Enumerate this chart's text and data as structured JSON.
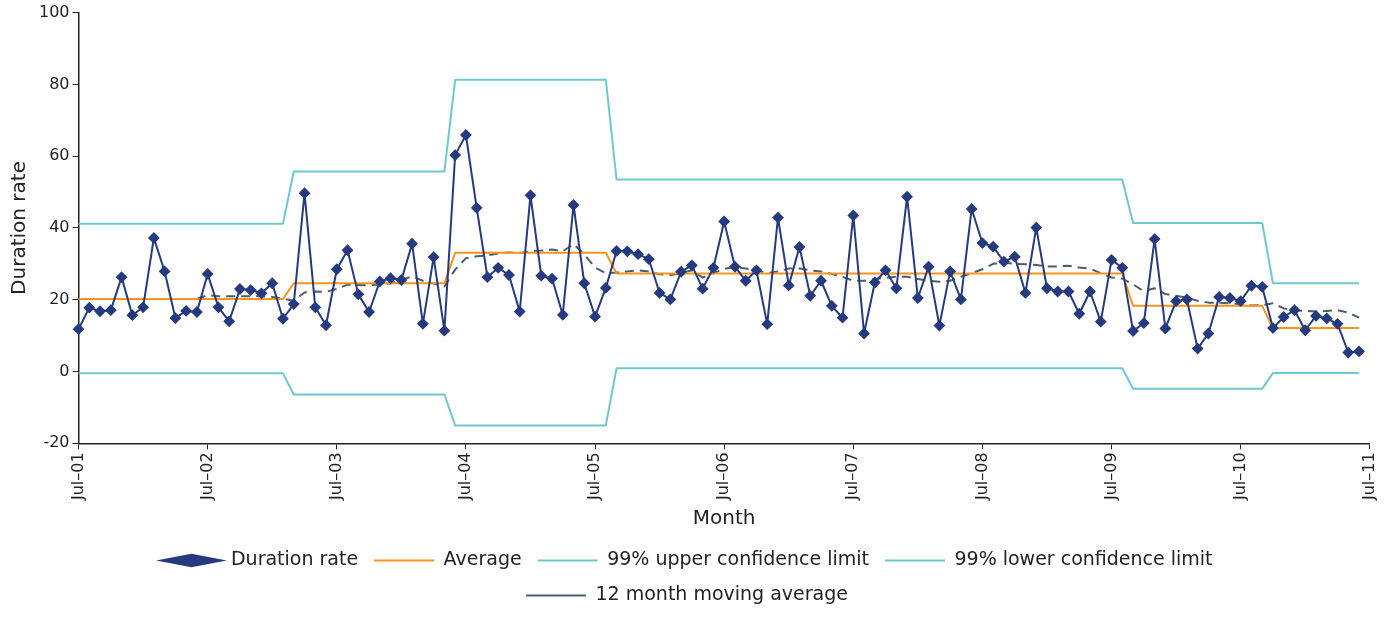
{
  "chart_data": {
    "type": "line",
    "xlabel": "Month",
    "ylabel": "Duration rate",
    "legend": "bottom",
    "ylim": [
      -20,
      100
    ],
    "yticks": [
      -20,
      0,
      20,
      40,
      60,
      80,
      100
    ],
    "categories": [
      "Jul–01",
      null,
      null,
      null,
      null,
      null,
      null,
      null,
      null,
      null,
      null,
      null,
      "Jul–02",
      null,
      null,
      null,
      null,
      null,
      null,
      null,
      null,
      null,
      null,
      null,
      "Jul–03",
      null,
      null,
      null,
      null,
      null,
      null,
      null,
      null,
      null,
      null,
      null,
      "Jul–04",
      null,
      null,
      null,
      null,
      null,
      null,
      null,
      null,
      null,
      null,
      null,
      "Jul–05",
      null,
      null,
      null,
      null,
      null,
      null,
      null,
      null,
      null,
      null,
      null,
      "Jul–06",
      null,
      null,
      null,
      null,
      null,
      null,
      null,
      null,
      null,
      null,
      null,
      "Jul–07",
      null,
      null,
      null,
      null,
      null,
      null,
      null,
      null,
      null,
      null,
      null,
      "Jul–08",
      null,
      null,
      null,
      null,
      null,
      null,
      null,
      null,
      null,
      null,
      null,
      "Jul–09",
      null,
      null,
      null,
      null,
      null,
      null,
      null,
      null,
      null,
      null,
      null,
      "Jul–10",
      null,
      null,
      null,
      null,
      null,
      null,
      null,
      null,
      null,
      null,
      null,
      "Jul–11"
    ],
    "series": [
      {
        "name": "Duration rate",
        "color": "#253a7f",
        "marker": "diamond",
        "line_style": "solid",
        "values": [
          11.8,
          17.8,
          16.8,
          17.1,
          26.3,
          15.7,
          17.9,
          37.2,
          27.9,
          14.9,
          16.9,
          16.6,
          27.2,
          17.9,
          14.0,
          23.0,
          22.7,
          21.8,
          24.6,
          14.7,
          18.8,
          49.7,
          17.9,
          12.9,
          28.5,
          33.8,
          21.5,
          16.6,
          25.1,
          26.0,
          25.5,
          35.6,
          13.3,
          31.9,
          11.4,
          60.3,
          65.9,
          45.6,
          26.3,
          28.9,
          26.9,
          16.7,
          49.1,
          26.7,
          25.9,
          15.8,
          46.4,
          24.6,
          15.3,
          23.3,
          33.6,
          33.5,
          32.7,
          31.3,
          21.9,
          20.1,
          27.8,
          29.6,
          23.1,
          28.9,
          41.8,
          29.2,
          25.3,
          28.2,
          13.2,
          42.9,
          24.0,
          34.7,
          21.1,
          25.3,
          18.3,
          15.0,
          43.5,
          10.6,
          24.8,
          28.2,
          23.2,
          48.7,
          20.5,
          29.2,
          12.8,
          27.9,
          20.1,
          45.3,
          35.8,
          34.8,
          30.6,
          32.0,
          21.9,
          40.1,
          23.2,
          22.3,
          22.3,
          16.1,
          22.3,
          13.9,
          31.1,
          28.9,
          11.3,
          13.5,
          36.9,
          12.0,
          19.6,
          20.1,
          6.4,
          10.6,
          20.8,
          20.5,
          19.6,
          23.9,
          23.6,
          12.1,
          15.2,
          17.1,
          11.5,
          15.5,
          14.8,
          13.3,
          5.3,
          5.6,
          null
        ]
      },
      {
        "name": "Average",
        "color": "#f7941d",
        "marker": "none",
        "line_style": "solid",
        "values": [
          20.2,
          20.2,
          20.2,
          20.2,
          20.2,
          20.2,
          20.2,
          20.2,
          20.2,
          20.2,
          20.2,
          20.2,
          20.2,
          20.2,
          20.2,
          20.2,
          20.2,
          20.2,
          20.2,
          20.2,
          24.6,
          24.6,
          24.6,
          24.6,
          24.6,
          24.6,
          24.6,
          24.6,
          24.6,
          24.6,
          24.6,
          24.6,
          24.6,
          24.6,
          24.6,
          33.1,
          33.1,
          33.1,
          33.1,
          33.1,
          33.1,
          33.1,
          33.1,
          33.1,
          33.1,
          33.1,
          33.1,
          33.1,
          33.1,
          33.1,
          27.3,
          27.3,
          27.3,
          27.3,
          27.3,
          27.3,
          27.3,
          27.3,
          27.3,
          27.3,
          27.3,
          27.3,
          27.3,
          27.3,
          27.3,
          27.3,
          27.3,
          27.3,
          27.3,
          27.3,
          27.3,
          27.3,
          27.3,
          27.3,
          27.3,
          27.3,
          27.3,
          27.3,
          27.3,
          27.3,
          27.3,
          27.3,
          27.3,
          27.3,
          27.3,
          27.3,
          27.3,
          27.3,
          27.3,
          27.3,
          27.3,
          27.3,
          27.3,
          27.3,
          27.3,
          27.3,
          27.3,
          27.3,
          18.3,
          18.3,
          18.3,
          18.3,
          18.3,
          18.3,
          18.3,
          18.3,
          18.3,
          18.3,
          18.3,
          18.3,
          18.3,
          12.1,
          12.1,
          12.1,
          12.1,
          12.1,
          12.1,
          12.1,
          12.1,
          12.1,
          null
        ]
      },
      {
        "name": "99% upper confidence limit",
        "color": "#6fc8cf",
        "marker": "none",
        "line_style": "solid",
        "values": [
          41.2,
          41.2,
          41.2,
          41.2,
          41.2,
          41.2,
          41.2,
          41.2,
          41.2,
          41.2,
          41.2,
          41.2,
          41.2,
          41.2,
          41.2,
          41.2,
          41.2,
          41.2,
          41.2,
          41.2,
          55.7,
          55.7,
          55.7,
          55.7,
          55.7,
          55.7,
          55.7,
          55.7,
          55.7,
          55.7,
          55.7,
          55.7,
          55.7,
          55.7,
          55.7,
          81.3,
          81.3,
          81.3,
          81.3,
          81.3,
          81.3,
          81.3,
          81.3,
          81.3,
          81.3,
          81.3,
          81.3,
          81.3,
          81.3,
          81.3,
          53.5,
          53.5,
          53.5,
          53.5,
          53.5,
          53.5,
          53.5,
          53.5,
          53.5,
          53.5,
          53.5,
          53.5,
          53.5,
          53.5,
          53.5,
          53.5,
          53.5,
          53.5,
          53.5,
          53.5,
          53.5,
          53.5,
          53.5,
          53.5,
          53.5,
          53.5,
          53.5,
          53.5,
          53.5,
          53.5,
          53.5,
          53.5,
          53.5,
          53.5,
          53.5,
          53.5,
          53.5,
          53.5,
          53.5,
          53.5,
          53.5,
          53.5,
          53.5,
          53.5,
          53.5,
          53.5,
          53.5,
          53.5,
          41.4,
          41.4,
          41.4,
          41.4,
          41.4,
          41.4,
          41.4,
          41.4,
          41.4,
          41.4,
          41.4,
          41.4,
          41.4,
          24.6,
          24.6,
          24.6,
          24.6,
          24.6,
          24.6,
          24.6,
          24.6,
          24.6,
          null
        ]
      },
      {
        "name": "99% lower confidence limit",
        "color": "#6fc8cf",
        "marker": "none",
        "line_style": "solid",
        "values": [
          -0.5,
          -0.5,
          -0.5,
          -0.5,
          -0.5,
          -0.5,
          -0.5,
          -0.5,
          -0.5,
          -0.5,
          -0.5,
          -0.5,
          -0.5,
          -0.5,
          -0.5,
          -0.5,
          -0.5,
          -0.5,
          -0.5,
          -0.5,
          -6.4,
          -6.4,
          -6.4,
          -6.4,
          -6.4,
          -6.4,
          -6.4,
          -6.4,
          -6.4,
          -6.4,
          -6.4,
          -6.4,
          -6.4,
          -6.4,
          -6.4,
          -15.0,
          -15.0,
          -15.0,
          -15.0,
          -15.0,
          -15.0,
          -15.0,
          -15.0,
          -15.0,
          -15.0,
          -15.0,
          -15.0,
          -15.0,
          -15.0,
          -15.0,
          0.9,
          0.9,
          0.9,
          0.9,
          0.9,
          0.9,
          0.9,
          0.9,
          0.9,
          0.9,
          0.9,
          0.9,
          0.9,
          0.9,
          0.9,
          0.9,
          0.9,
          0.9,
          0.9,
          0.9,
          0.9,
          0.9,
          0.9,
          0.9,
          0.9,
          0.9,
          0.9,
          0.9,
          0.9,
          0.9,
          0.9,
          0.9,
          0.9,
          0.9,
          0.9,
          0.9,
          0.9,
          0.9,
          0.9,
          0.9,
          0.9,
          0.9,
          0.9,
          0.9,
          0.9,
          0.9,
          0.9,
          0.9,
          -4.8,
          -4.8,
          -4.8,
          -4.8,
          -4.8,
          -4.8,
          -4.8,
          -4.8,
          -4.8,
          -4.8,
          -4.8,
          -4.8,
          -4.8,
          -0.4,
          -0.4,
          -0.4,
          -0.4,
          -0.4,
          -0.4,
          -0.4,
          -0.4,
          -0.4,
          null
        ]
      },
      {
        "name": "12 month moving average",
        "color": "#4a5f6b",
        "marker": "none",
        "line_style": "dashed",
        "values": [
          null,
          null,
          null,
          null,
          null,
          null,
          null,
          null,
          null,
          null,
          null,
          20.2,
          21.3,
          21.0,
          21.0,
          21.0,
          21.0,
          21.0,
          20.8,
          20.3,
          19.7,
          22.0,
          22.3,
          22.2,
          23.0,
          24.2,
          24.1,
          24.0,
          24.3,
          24.5,
          25.5,
          26.5,
          25.3,
          24.5,
          23.7,
          28.4,
          31.6,
          32.1,
          32.4,
          32.9,
          33.2,
          33.0,
          33.5,
          33.7,
          34.0,
          33.5,
          35.5,
          32.6,
          29.0,
          27.4,
          27.6,
          27.9,
          28.2,
          27.9,
          27.1,
          26.9,
          27.4,
          28.2,
          26.2,
          27.4,
          28.6,
          29.2,
          28.7,
          28.2,
          27.4,
          27.9,
          28.7,
          28.7,
          28.2,
          27.9,
          27.2,
          26.4,
          25.3,
          25.3,
          25.8,
          26.1,
          26.4,
          26.4,
          25.8,
          25.3,
          25.0,
          25.3,
          26.4,
          27.4,
          28.5,
          30.0,
          30.3,
          30.0,
          29.9,
          29.7,
          29.3,
          29.3,
          29.5,
          29.0,
          28.7,
          27.4,
          26.2,
          25.9,
          24.3,
          22.4,
          23.2,
          21.6,
          21.1,
          20.6,
          19.7,
          19.2,
          19.2,
          19.0,
          18.8,
          18.4,
          18.5,
          19.0,
          17.6,
          17.1,
          16.9,
          16.7,
          16.9,
          17.1,
          16.4,
          15.0,
          null
        ]
      }
    ]
  }
}
